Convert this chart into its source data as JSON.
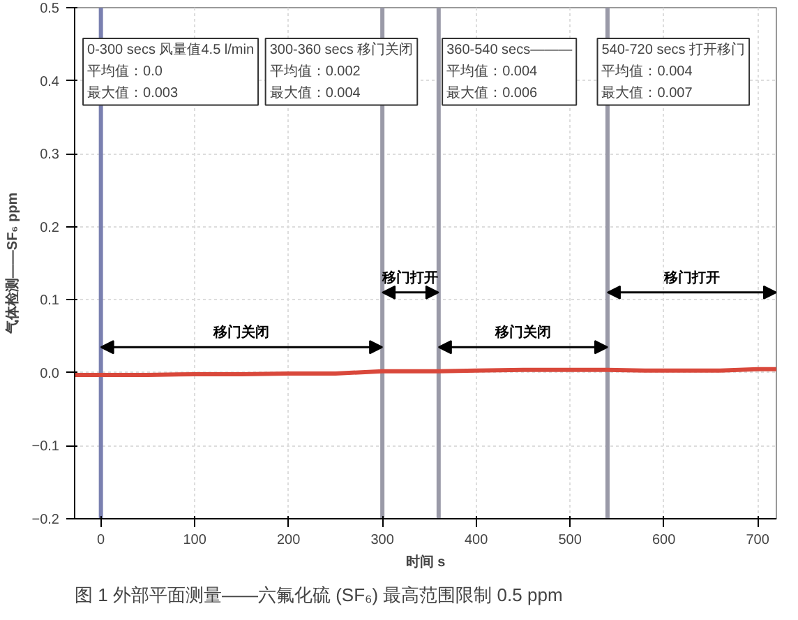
{
  "chart_data": {
    "type": "line",
    "title": "图 1 外部平面测量——六氟化硫 (SF₆) 最高范围限制 0.5 ppm",
    "xlabel": "时间 s",
    "ylabel": "气体检测——SF₆ ppm",
    "x": [
      -28,
      0,
      50,
      100,
      150,
      200,
      250,
      300,
      330,
      360,
      400,
      450,
      500,
      540,
      580,
      620,
      660,
      700,
      720
    ],
    "series": [
      {
        "color": "#d9483b",
        "values": [
          -0.003,
          -0.003,
          -0.003,
          -0.002,
          -0.002,
          -0.001,
          -0.001,
          0.002,
          0.002,
          0.002,
          0.003,
          0.004,
          0.004,
          0.004,
          0.003,
          0.003,
          0.003,
          0.005,
          0.005
        ]
      }
    ],
    "xlim": [
      -28,
      720
    ],
    "ylim": [
      -0.2,
      0.5
    ],
    "xticks": [
      0,
      100,
      200,
      300,
      400,
      500,
      600,
      700
    ],
    "yticks": [
      {
        "value": -0.2,
        "label": "−0.2"
      },
      {
        "value": -0.1,
        "label": "−0.1"
      },
      {
        "value": 0,
        "label": "0.0"
      },
      {
        "value": 0.1,
        "label": "0.1"
      },
      {
        "value": 0.2,
        "label": "0.2"
      },
      {
        "value": 0.3,
        "label": "0.3"
      },
      {
        "value": 0.4,
        "label": "0.4"
      },
      {
        "value": 0.5,
        "label": "0.5"
      }
    ],
    "grid": true,
    "ref_lines": [
      {
        "axis": "x",
        "value": 0,
        "color": "#7a80b0"
      },
      {
        "axis": "x",
        "value": 300,
        "color": "#9a9aa8"
      },
      {
        "axis": "x",
        "value": 360,
        "color": "#9a9aa8"
      },
      {
        "axis": "x",
        "value": 540,
        "color": "#9a9aa8"
      }
    ],
    "annotations": [
      "0-300 secs 风量值4.5 l/min",
      "平均值：0.0",
      "最大值：0.003",
      "300-360 secs 移门关闭",
      "平均值：0.002",
      "最大值：0.004",
      "360-540 secs———",
      "平均值：0.004",
      "最大值：0.006",
      "540-720 secs 打开移门",
      "平均值：0.004",
      "最大值：0.007",
      "移门关闭",
      "移门打开",
      "移门关闭",
      "移门打开"
    ]
  }
}
